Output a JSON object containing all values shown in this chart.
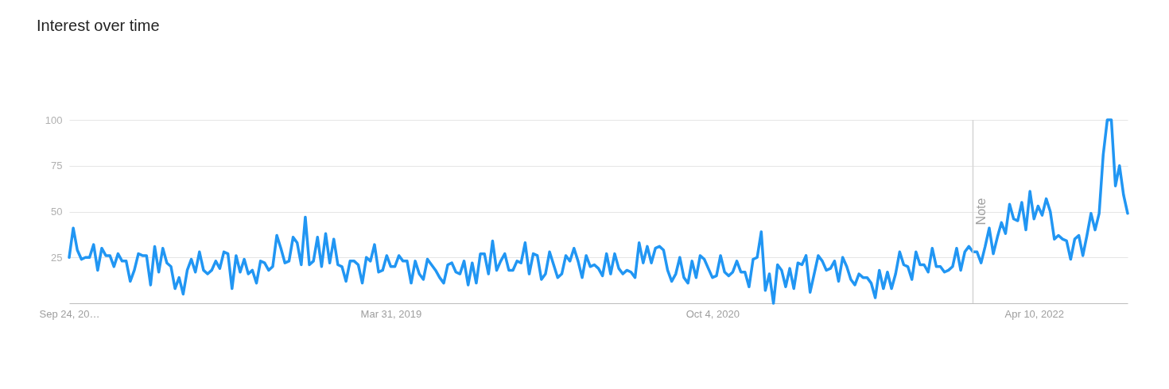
{
  "chart_data": {
    "type": "line",
    "title": "Interest over time",
    "x": [
      "2017-09-24",
      "2017-10-01",
      "2017-10-08",
      "2017-10-15",
      "2017-10-22",
      "2017-10-29",
      "2017-11-05",
      "2017-11-12",
      "2017-11-19",
      "2017-11-26",
      "2017-12-03",
      "2017-12-10",
      "2017-12-17",
      "2017-12-24",
      "2017-12-31",
      "2018-01-07",
      "2018-01-14",
      "2018-01-21",
      "2018-01-28",
      "2018-02-04",
      "2018-02-11",
      "2018-02-18",
      "2018-02-25",
      "2018-03-04",
      "2018-03-11",
      "2018-03-18",
      "2018-03-25",
      "2018-04-01",
      "2018-04-08",
      "2018-04-15",
      "2018-04-22",
      "2018-04-29",
      "2018-05-06",
      "2018-05-13",
      "2018-05-20",
      "2018-05-27",
      "2018-06-03",
      "2018-06-10",
      "2018-06-17",
      "2018-06-24",
      "2018-07-01",
      "2018-07-08",
      "2018-07-15",
      "2018-07-22",
      "2018-07-29",
      "2018-08-05",
      "2018-08-12",
      "2018-08-19",
      "2018-08-26",
      "2018-09-02",
      "2018-09-09",
      "2018-09-16",
      "2018-09-23",
      "2018-09-30",
      "2018-10-07",
      "2018-10-14",
      "2018-10-21",
      "2018-10-28",
      "2018-11-04",
      "2018-11-11",
      "2018-11-18",
      "2018-11-25",
      "2018-12-02",
      "2018-12-09",
      "2018-12-16",
      "2018-12-23",
      "2018-12-30",
      "2019-01-06",
      "2019-01-13",
      "2019-01-20",
      "2019-01-27",
      "2019-02-03",
      "2019-02-10",
      "2019-02-17",
      "2019-02-24",
      "2019-03-03",
      "2019-03-10",
      "2019-03-17",
      "2019-03-24",
      "2019-03-31",
      "2019-04-07",
      "2019-04-14",
      "2019-04-21",
      "2019-04-28",
      "2019-05-05",
      "2019-05-12",
      "2019-05-19",
      "2019-05-26",
      "2019-06-02",
      "2019-06-09",
      "2019-06-16",
      "2019-06-23",
      "2019-06-30",
      "2019-07-07",
      "2019-07-14",
      "2019-07-21",
      "2019-07-28",
      "2019-08-04",
      "2019-08-11",
      "2019-08-18",
      "2019-08-25",
      "2019-09-01",
      "2019-09-08",
      "2019-09-15",
      "2019-09-22",
      "2019-09-29",
      "2019-10-06",
      "2019-10-13",
      "2019-10-20",
      "2019-10-27",
      "2019-11-03",
      "2019-11-10",
      "2019-11-17",
      "2019-11-24",
      "2019-12-01",
      "2019-12-08",
      "2019-12-15",
      "2019-12-22",
      "2019-12-29",
      "2020-01-05",
      "2020-01-12",
      "2020-01-19",
      "2020-01-26",
      "2020-02-02",
      "2020-02-09",
      "2020-02-16",
      "2020-02-23",
      "2020-03-01",
      "2020-03-08",
      "2020-03-15",
      "2020-03-22",
      "2020-03-29",
      "2020-04-05",
      "2020-04-12",
      "2020-04-19",
      "2020-04-26",
      "2020-05-03",
      "2020-05-10",
      "2020-05-17",
      "2020-05-24",
      "2020-05-31",
      "2020-06-07",
      "2020-06-14",
      "2020-06-21",
      "2020-06-28",
      "2020-07-05",
      "2020-07-12",
      "2020-07-19",
      "2020-07-26",
      "2020-08-02",
      "2020-08-09",
      "2020-08-16",
      "2020-08-23",
      "2020-08-30",
      "2020-09-06",
      "2020-09-13",
      "2020-09-20",
      "2020-09-27",
      "2020-10-04",
      "2020-10-11",
      "2020-10-18",
      "2020-10-25",
      "2020-11-01",
      "2020-11-08",
      "2020-11-15",
      "2020-11-22",
      "2020-11-29",
      "2020-12-06",
      "2020-12-13",
      "2020-12-20",
      "2020-12-27",
      "2021-01-03",
      "2021-01-10",
      "2021-01-17",
      "2021-01-24",
      "2021-01-31",
      "2021-02-07",
      "2021-02-14",
      "2021-02-21",
      "2021-02-28",
      "2021-03-07",
      "2021-03-14",
      "2021-03-21",
      "2021-03-28",
      "2021-04-04",
      "2021-04-11",
      "2021-04-18",
      "2021-04-25",
      "2021-05-02",
      "2021-05-09",
      "2021-05-16",
      "2021-05-23",
      "2021-05-30",
      "2021-06-06",
      "2021-06-13",
      "2021-06-20",
      "2021-06-27",
      "2021-07-04",
      "2021-07-11",
      "2021-07-18",
      "2021-07-25",
      "2021-08-01",
      "2021-08-08",
      "2021-08-15",
      "2021-08-22",
      "2021-08-29",
      "2021-09-05",
      "2021-09-12",
      "2021-09-19",
      "2021-09-26",
      "2021-10-03",
      "2021-10-10",
      "2021-10-17",
      "2021-10-24",
      "2021-10-31",
      "2021-11-07",
      "2021-11-14",
      "2021-11-21",
      "2021-11-28",
      "2021-12-05",
      "2021-12-12",
      "2021-12-19",
      "2021-12-26",
      "2022-01-02",
      "2022-01-09",
      "2022-01-16",
      "2022-01-23",
      "2022-01-30",
      "2022-02-06",
      "2022-02-13",
      "2022-02-20",
      "2022-02-27",
      "2022-03-06",
      "2022-03-13",
      "2022-03-20",
      "2022-03-27",
      "2022-04-03",
      "2022-04-10",
      "2022-04-17",
      "2022-04-24",
      "2022-05-01",
      "2022-05-08",
      "2022-05-15",
      "2022-05-22",
      "2022-05-29",
      "2022-06-05",
      "2022-06-12",
      "2022-06-19",
      "2022-06-26",
      "2022-07-03",
      "2022-07-10",
      "2022-07-17",
      "2022-07-24",
      "2022-07-31",
      "2022-08-07",
      "2022-08-14",
      "2022-08-21",
      "2022-08-28",
      "2022-09-04",
      "2022-09-11",
      "2022-09-18"
    ],
    "series": [
      {
        "color": "#2196f3",
        "values": [
          25,
          41,
          29,
          24,
          25,
          25,
          32,
          18,
          30,
          26,
          26,
          20,
          27,
          23,
          23,
          12,
          18,
          27,
          26,
          26,
          10,
          31,
          17,
          30,
          22,
          20,
          8,
          14,
          5,
          18,
          24,
          17,
          28,
          18,
          16,
          18,
          23,
          19,
          28,
          27,
          8,
          26,
          17,
          24,
          16,
          18,
          11,
          23,
          22,
          18,
          20,
          37,
          30,
          22,
          23,
          36,
          33,
          21,
          47,
          21,
          23,
          36,
          20,
          38,
          22,
          35,
          21,
          20,
          12,
          23,
          23,
          21,
          11,
          25,
          23,
          32,
          17,
          18,
          26,
          20,
          20,
          26,
          23,
          23,
          11,
          23,
          16,
          13,
          24,
          21,
          18,
          14,
          11,
          21,
          22,
          17,
          16,
          23,
          10,
          22,
          11,
          27,
          27,
          16,
          34,
          18,
          23,
          27,
          18,
          18,
          23,
          22,
          33,
          16,
          27,
          26,
          13,
          16,
          28,
          21,
          14,
          16,
          26,
          23,
          30,
          23,
          14,
          26,
          20,
          21,
          19,
          15,
          27,
          16,
          27,
          19,
          16,
          18,
          17,
          14,
          33,
          22,
          31,
          22,
          30,
          31,
          29,
          18,
          12,
          16,
          25,
          14,
          11,
          23,
          14,
          26,
          24,
          19,
          14,
          15,
          26,
          17,
          15,
          17,
          23,
          17,
          17,
          9,
          24,
          25,
          39,
          7,
          16,
          0,
          21,
          18,
          9,
          19,
          8,
          22,
          21,
          26,
          6,
          16,
          26,
          23,
          18,
          19,
          23,
          12,
          25,
          20,
          13,
          10,
          16,
          14,
          14,
          11,
          3,
          18,
          8,
          17,
          8,
          16,
          28,
          21,
          20,
          13,
          28,
          21,
          21,
          17,
          30,
          20,
          20,
          17,
          18,
          20,
          30,
          18,
          28,
          31,
          28,
          28,
          22,
          31,
          41,
          27,
          36,
          44,
          38,
          54,
          46,
          45,
          55,
          40,
          61,
          46,
          53,
          48,
          57,
          50,
          35,
          37,
          35,
          34,
          24,
          35,
          37,
          26,
          37,
          49,
          40,
          49,
          81,
          100,
          100,
          64,
          75,
          59,
          49
        ]
      }
    ],
    "xlim": [
      "2017-09-24",
      "2022-09-18"
    ],
    "xticks": [
      {
        "value": "2017-09-24",
        "label": "Sep 24, 20…"
      },
      {
        "value": "2019-03-31",
        "label": "Mar 31, 2019"
      },
      {
        "value": "2020-10-04",
        "label": "Oct 4, 2020"
      },
      {
        "value": "2022-04-10",
        "label": "Apr 10, 2022"
      }
    ],
    "ylim": [
      0,
      100
    ],
    "yticks": [
      25,
      50,
      75,
      100
    ],
    "grid": "y",
    "line_style": "solid",
    "ref_lines": [
      {
        "axis": "x",
        "value": "2021-12-26",
        "label": "Note",
        "color": "#d6d6d6"
      }
    ]
  }
}
